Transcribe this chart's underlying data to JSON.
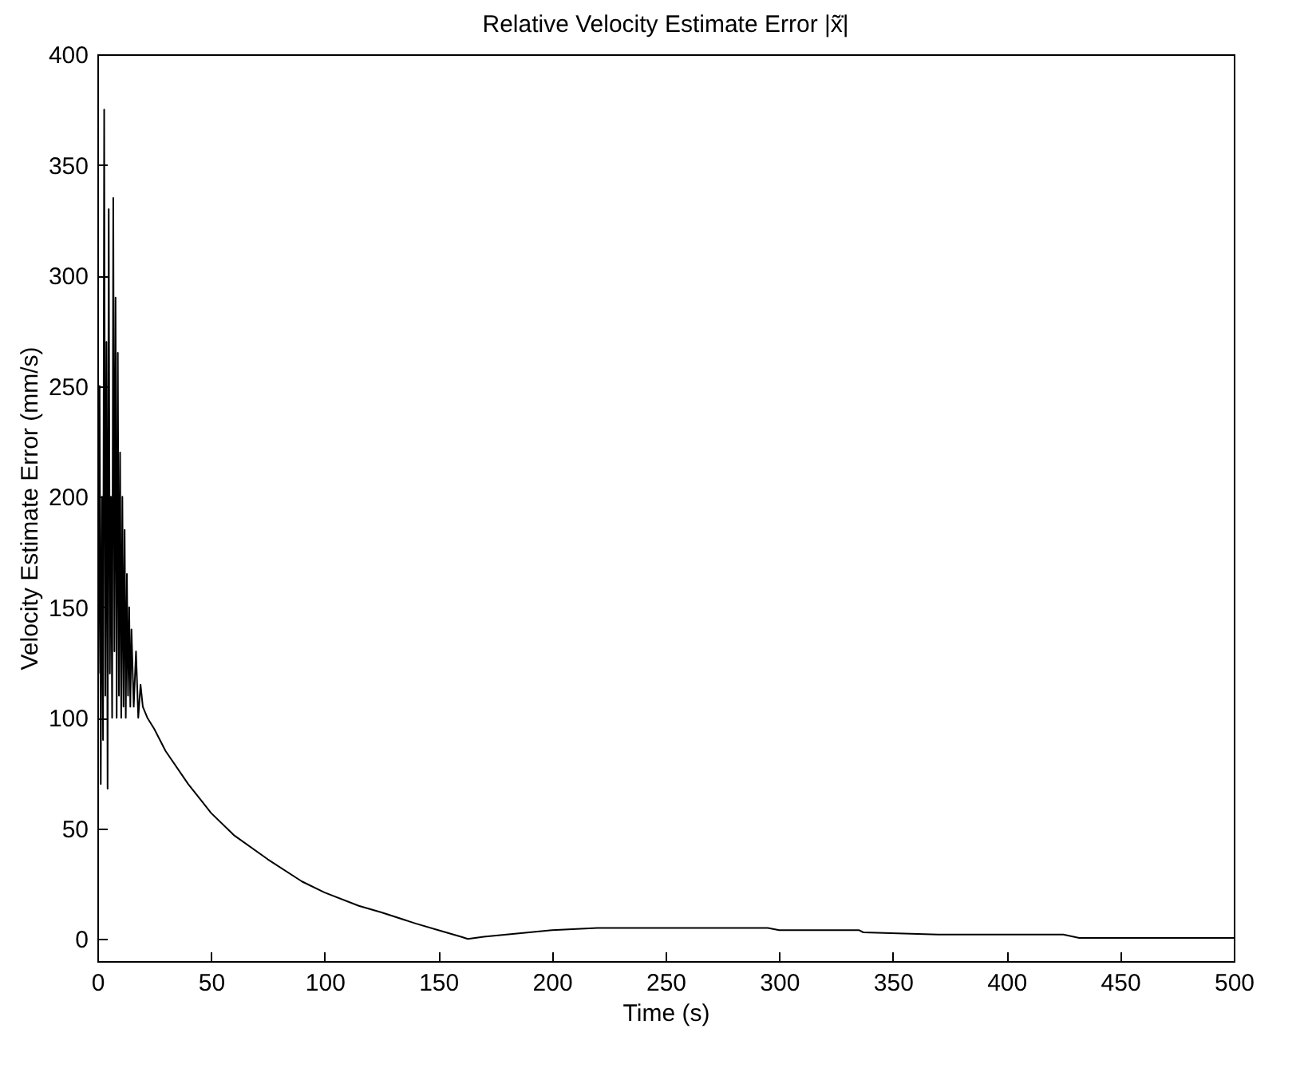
{
  "chart_data": {
    "type": "line",
    "title": "Relative Velocity Estimate Error |x̃̇|",
    "xlabel": "Time (s)",
    "ylabel": "Velocity Estimate Error (mm/s)",
    "x": [
      0.5,
      1,
      1.5,
      2,
      2.5,
      3,
      3.5,
      4,
      4.5,
      5,
      5.5,
      6,
      6.5,
      7,
      7.5,
      8,
      8.5,
      9,
      9.5,
      10,
      10.5,
      11,
      11.5,
      12,
      12.5,
      13,
      13.5,
      14,
      14.5,
      15,
      16,
      17,
      18,
      19,
      20,
      22,
      25,
      30,
      40,
      50,
      60,
      75,
      90,
      100,
      115,
      125,
      140,
      150,
      160,
      163,
      170,
      180,
      200,
      220,
      250,
      280,
      295,
      300,
      335,
      337,
      370,
      400,
      425,
      432,
      450,
      500
    ],
    "series": [
      {
        "color": "#000000",
        "values": [
          120,
          250,
          70,
          200,
          90,
          375,
          110,
          270,
          68,
          330,
          120,
          200,
          100,
          335,
          130,
          290,
          100,
          265,
          110,
          220,
          100,
          200,
          105,
          185,
          100,
          165,
          110,
          150,
          105,
          140,
          105,
          130,
          100,
          115,
          105,
          100,
          95,
          85,
          70,
          57,
          47,
          36,
          26,
          21,
          15,
          12,
          7,
          4,
          1,
          0,
          1,
          2,
          4,
          5,
          5,
          5,
          5,
          4,
          4,
          3,
          2,
          2,
          2,
          0.5,
          0.5,
          0.5
        ]
      }
    ],
    "xlim": [
      0,
      500
    ],
    "xticks": [
      0,
      50,
      100,
      150,
      200,
      250,
      300,
      350,
      400,
      450,
      500
    ],
    "ylim": [
      -10,
      400
    ],
    "yticks": [
      0,
      50,
      100,
      150,
      200,
      250,
      300,
      350,
      400
    ],
    "grid": false,
    "marker": "none",
    "line_style": "solid"
  }
}
